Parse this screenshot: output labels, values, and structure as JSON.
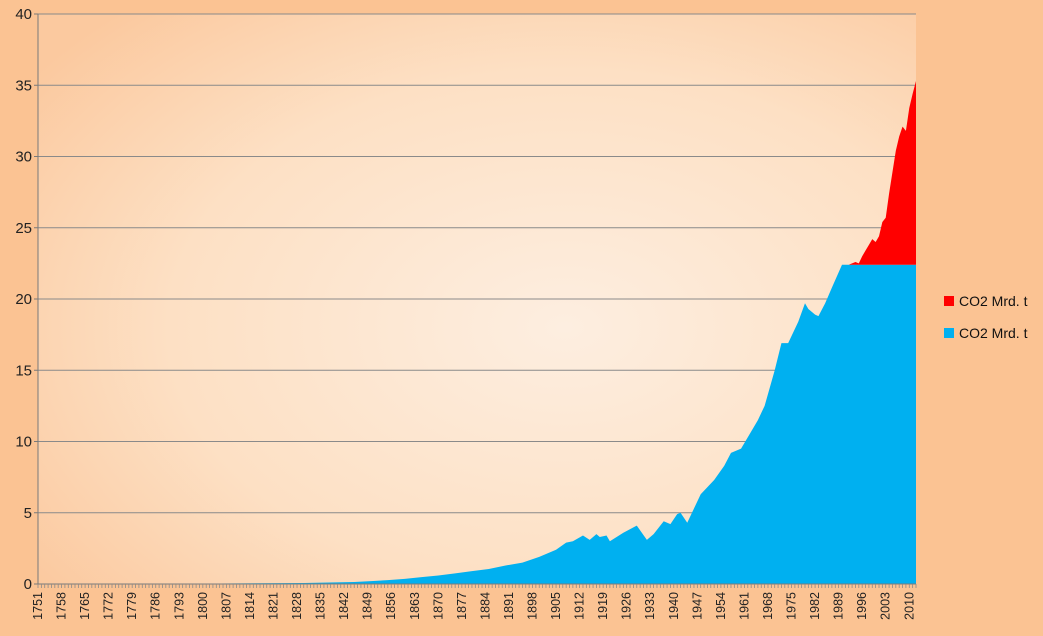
{
  "chart_data": {
    "type": "area",
    "stacked": true,
    "title": "",
    "xlabel": "",
    "ylabel": "",
    "ylim": [
      0,
      40
    ],
    "yticks": [
      0,
      5,
      10,
      15,
      20,
      25,
      30,
      35,
      40
    ],
    "xlim": [
      1751,
      2012
    ],
    "xtick_labels": [
      "1751",
      "1758",
      "1765",
      "1772",
      "1779",
      "1786",
      "1793",
      "1800",
      "1807",
      "1814",
      "1821",
      "1828",
      "1835",
      "1842",
      "1849",
      "1856",
      "1863",
      "1870",
      "1877",
      "1884",
      "1891",
      "1898",
      "1905",
      "1912",
      "1919",
      "1926",
      "1933",
      "1940",
      "1947",
      "1954",
      "1961",
      "1968",
      "1975",
      "1982",
      "1989",
      "1996",
      "2003",
      "2010"
    ],
    "grid": "horizontal",
    "legend_position": "right",
    "series": [
      {
        "name": "CO2 Mrd. t",
        "color": "#ff0000",
        "x": [
          1751,
          1992,
          1994,
          1995,
          1996,
          1997,
          1998,
          1999,
          2000,
          2001,
          2002,
          2003,
          2004,
          2005,
          2006,
          2007,
          2008,
          2009,
          2010,
          2011,
          2012
        ],
        "values": [
          0,
          0,
          0.2,
          0.1,
          0.6,
          1.0,
          1.4,
          1.8,
          1.6,
          2.0,
          3.0,
          3.3,
          5.0,
          6.5,
          8.0,
          9.0,
          9.7,
          9.4,
          11.0,
          12.0,
          12.9
        ]
      },
      {
        "name": "CO2 Mrd. t",
        "color": "#00b0f0",
        "x": [
          1751,
          1800,
          1830,
          1845,
          1850,
          1855,
          1860,
          1865,
          1870,
          1875,
          1880,
          1885,
          1890,
          1895,
          1900,
          1905,
          1908,
          1910,
          1913,
          1915,
          1917,
          1918,
          1920,
          1921,
          1925,
          1929,
          1932,
          1934,
          1937,
          1939,
          1941,
          1942,
          1944,
          1946,
          1948,
          1950,
          1952,
          1955,
          1957,
          1960,
          1962,
          1965,
          1967,
          1970,
          1972,
          1974,
          1975,
          1977,
          1979,
          1980,
          1982,
          1983,
          1985,
          1987,
          1990,
          1992,
          2012
        ],
        "values": [
          0.01,
          0.03,
          0.07,
          0.14,
          0.2,
          0.27,
          0.36,
          0.48,
          0.6,
          0.75,
          0.9,
          1.05,
          1.3,
          1.5,
          1.9,
          2.4,
          2.9,
          3.0,
          3.4,
          3.1,
          3.5,
          3.3,
          3.4,
          3.0,
          3.6,
          4.1,
          3.1,
          3.5,
          4.4,
          4.2,
          4.9,
          5.0,
          4.3,
          5.3,
          6.3,
          6.8,
          7.3,
          8.3,
          9.2,
          9.5,
          10.3,
          11.5,
          12.5,
          15.0,
          16.9,
          16.9,
          17.4,
          18.4,
          19.7,
          19.3,
          18.9,
          18.8,
          19.7,
          20.8,
          22.4,
          22.4,
          22.4
        ]
      }
    ]
  }
}
